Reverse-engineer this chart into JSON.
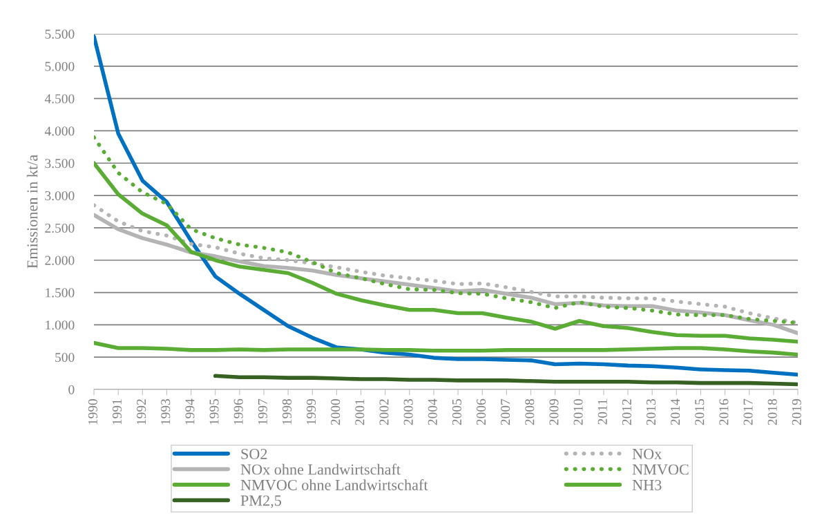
{
  "chart_data": {
    "type": "line",
    "ylabel": "Emissionen in kt/a",
    "categories": [
      "1990",
      "1991",
      "1992",
      "1993",
      "1994",
      "1995",
      "1996",
      "1997",
      "1998",
      "1999",
      "2000",
      "2001",
      "2002",
      "2003",
      "2004",
      "2005",
      "2006",
      "2007",
      "2008",
      "2009",
      "2010",
      "2011",
      "2012",
      "2013",
      "2014",
      "2015",
      "2016",
      "2017",
      "2018",
      "2019"
    ],
    "series": [
      {
        "name": "SO2",
        "color": "#0070c0",
        "line_style": "solid",
        "values": [
          5460,
          3960,
          3230,
          2900,
          2300,
          1750,
          1480,
          1230,
          980,
          800,
          650,
          620,
          570,
          540,
          490,
          470,
          470,
          460,
          450,
          390,
          400,
          390,
          370,
          360,
          340,
          310,
          300,
          290,
          260,
          230
        ]
      },
      {
        "name": "NOx",
        "color": "#b4b4b4",
        "line_style": "dotted",
        "values": [
          2850,
          2600,
          2450,
          2380,
          2250,
          2200,
          2100,
          2030,
          2000,
          1950,
          1890,
          1820,
          1760,
          1720,
          1680,
          1630,
          1640,
          1580,
          1510,
          1440,
          1440,
          1420,
          1410,
          1410,
          1360,
          1320,
          1280,
          1180,
          1100,
          1030
        ]
      },
      {
        "name": "NOx ohne Landwirtschaft",
        "color": "#b4b4b4",
        "line_style": "solid",
        "values": [
          2700,
          2480,
          2340,
          2240,
          2120,
          2060,
          1980,
          1910,
          1880,
          1840,
          1770,
          1720,
          1670,
          1620,
          1570,
          1520,
          1540,
          1480,
          1420,
          1320,
          1340,
          1300,
          1290,
          1290,
          1220,
          1190,
          1150,
          1070,
          1000,
          870
        ]
      },
      {
        "name": "NMVOC",
        "color": "#5aac35",
        "line_style": "dotted",
        "values": [
          3900,
          3350,
          3050,
          2870,
          2480,
          2340,
          2240,
          2190,
          2120,
          1970,
          1800,
          1720,
          1630,
          1550,
          1540,
          1490,
          1480,
          1410,
          1350,
          1260,
          1350,
          1280,
          1260,
          1220,
          1160,
          1150,
          1150,
          1090,
          1060,
          1030
        ]
      },
      {
        "name": "NMVOC ohne Landwirtschaft",
        "color": "#5aac35",
        "line_style": "solid",
        "values": [
          3500,
          3020,
          2720,
          2540,
          2130,
          2000,
          1900,
          1850,
          1800,
          1650,
          1480,
          1380,
          1300,
          1230,
          1230,
          1180,
          1180,
          1110,
          1050,
          940,
          1060,
          980,
          950,
          890,
          840,
          830,
          830,
          790,
          770,
          740
        ]
      },
      {
        "name": "NH3",
        "color": "#5aac35",
        "line_style": "solid",
        "values": [
          720,
          640,
          640,
          630,
          610,
          610,
          620,
          610,
          620,
          620,
          620,
          620,
          610,
          610,
          600,
          600,
          600,
          610,
          610,
          610,
          610,
          610,
          620,
          630,
          640,
          640,
          620,
          590,
          570,
          540
        ]
      },
      {
        "name": "PM2,5",
        "color": "#376023",
        "line_style": "solid",
        "values": [
          null,
          null,
          null,
          null,
          null,
          210,
          190,
          190,
          180,
          180,
          170,
          160,
          160,
          150,
          150,
          140,
          140,
          140,
          130,
          120,
          120,
          120,
          120,
          110,
          110,
          100,
          100,
          100,
          90,
          80
        ]
      }
    ],
    "ylim": [
      0,
      5500
    ],
    "yticks": [
      0,
      500,
      {
        "value": 1000,
        "label": "1.000"
      },
      {
        "value": 1500,
        "label": "1.500"
      },
      {
        "value": 2000,
        "label": "2.000"
      },
      {
        "value": 2500,
        "label": "2.500"
      },
      {
        "value": 3000,
        "label": "3.000"
      },
      {
        "value": 3500,
        "label": "3.500"
      },
      {
        "value": 4000,
        "label": "4.000"
      },
      {
        "value": 4500,
        "label": "4.500"
      },
      {
        "value": 5000,
        "label": "5.000"
      },
      {
        "value": 5500,
        "label": "5.500"
      }
    ],
    "grid": "y",
    "legend": "bottom",
    "marker": "none"
  }
}
